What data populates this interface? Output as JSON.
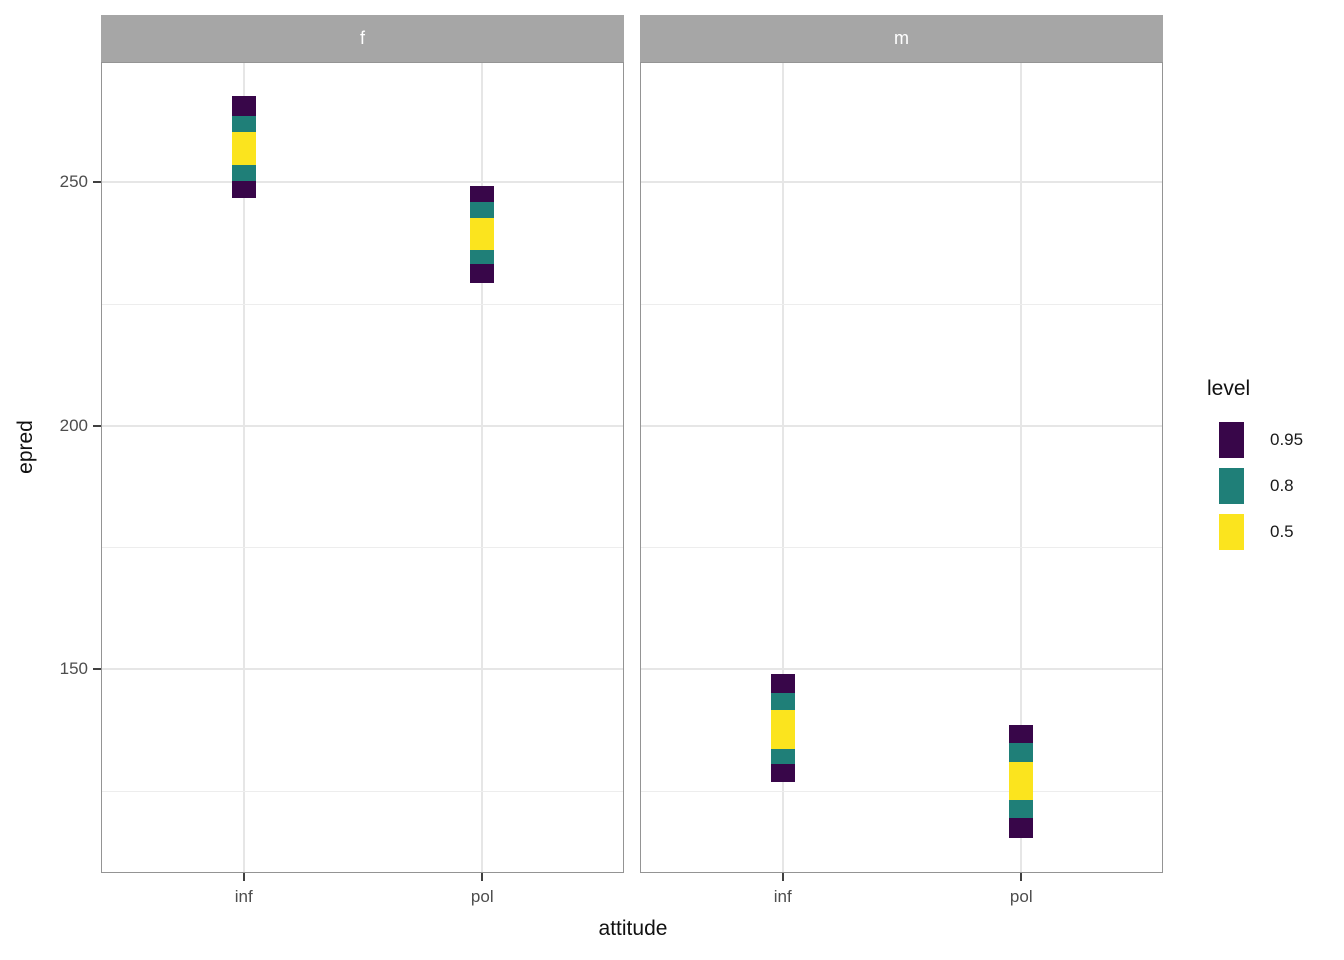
{
  "chart_data": {
    "type": "interval",
    "title": "",
    "xlabel": "attitude",
    "ylabel": "epred",
    "x_categories": [
      "inf",
      "pol"
    ],
    "y_ticks": [
      150,
      200,
      250
    ],
    "y_minor_ticks": [
      125,
      175,
      225
    ],
    "ylim": [
      108,
      275
    ],
    "grid": "on",
    "legend": {
      "title": "level",
      "position": "right",
      "entries": [
        {
          "label": "0.95",
          "color": "#380649"
        },
        {
          "label": "0.8",
          "color": "#1F7F78"
        },
        {
          "label": "0.5",
          "color": "#FBE41E"
        }
      ]
    },
    "facets": [
      {
        "label": "f",
        "groups": [
          {
            "x": "inf",
            "intervals": [
              {
                "level": "0.95",
                "lo": 246.7,
                "hi": 267.7
              },
              {
                "level": "0.8",
                "lo": 250.2,
                "hi": 263.6
              },
              {
                "level": "0.5",
                "lo": 253.5,
                "hi": 260.3
              }
            ]
          },
          {
            "x": "pol",
            "intervals": [
              {
                "level": "0.95",
                "lo": 229.3,
                "hi": 249.2
              },
              {
                "level": "0.8",
                "lo": 233.2,
                "hi": 245.9
              },
              {
                "level": "0.5",
                "lo": 236.0,
                "hi": 242.6
              }
            ]
          }
        ]
      },
      {
        "label": "m",
        "groups": [
          {
            "x": "inf",
            "intervals": [
              {
                "level": "0.95",
                "lo": 126.8,
                "hi": 149.0
              },
              {
                "level": "0.8",
                "lo": 130.5,
                "hi": 145.1
              },
              {
                "level": "0.5",
                "lo": 133.6,
                "hi": 141.6
              }
            ]
          },
          {
            "x": "pol",
            "intervals": [
              {
                "level": "0.95",
                "lo": 115.3,
                "hi": 138.5
              },
              {
                "level": "0.8",
                "lo": 119.4,
                "hi": 134.8
              },
              {
                "level": "0.5",
                "lo": 123.1,
                "hi": 130.9
              }
            ]
          }
        ]
      }
    ]
  }
}
